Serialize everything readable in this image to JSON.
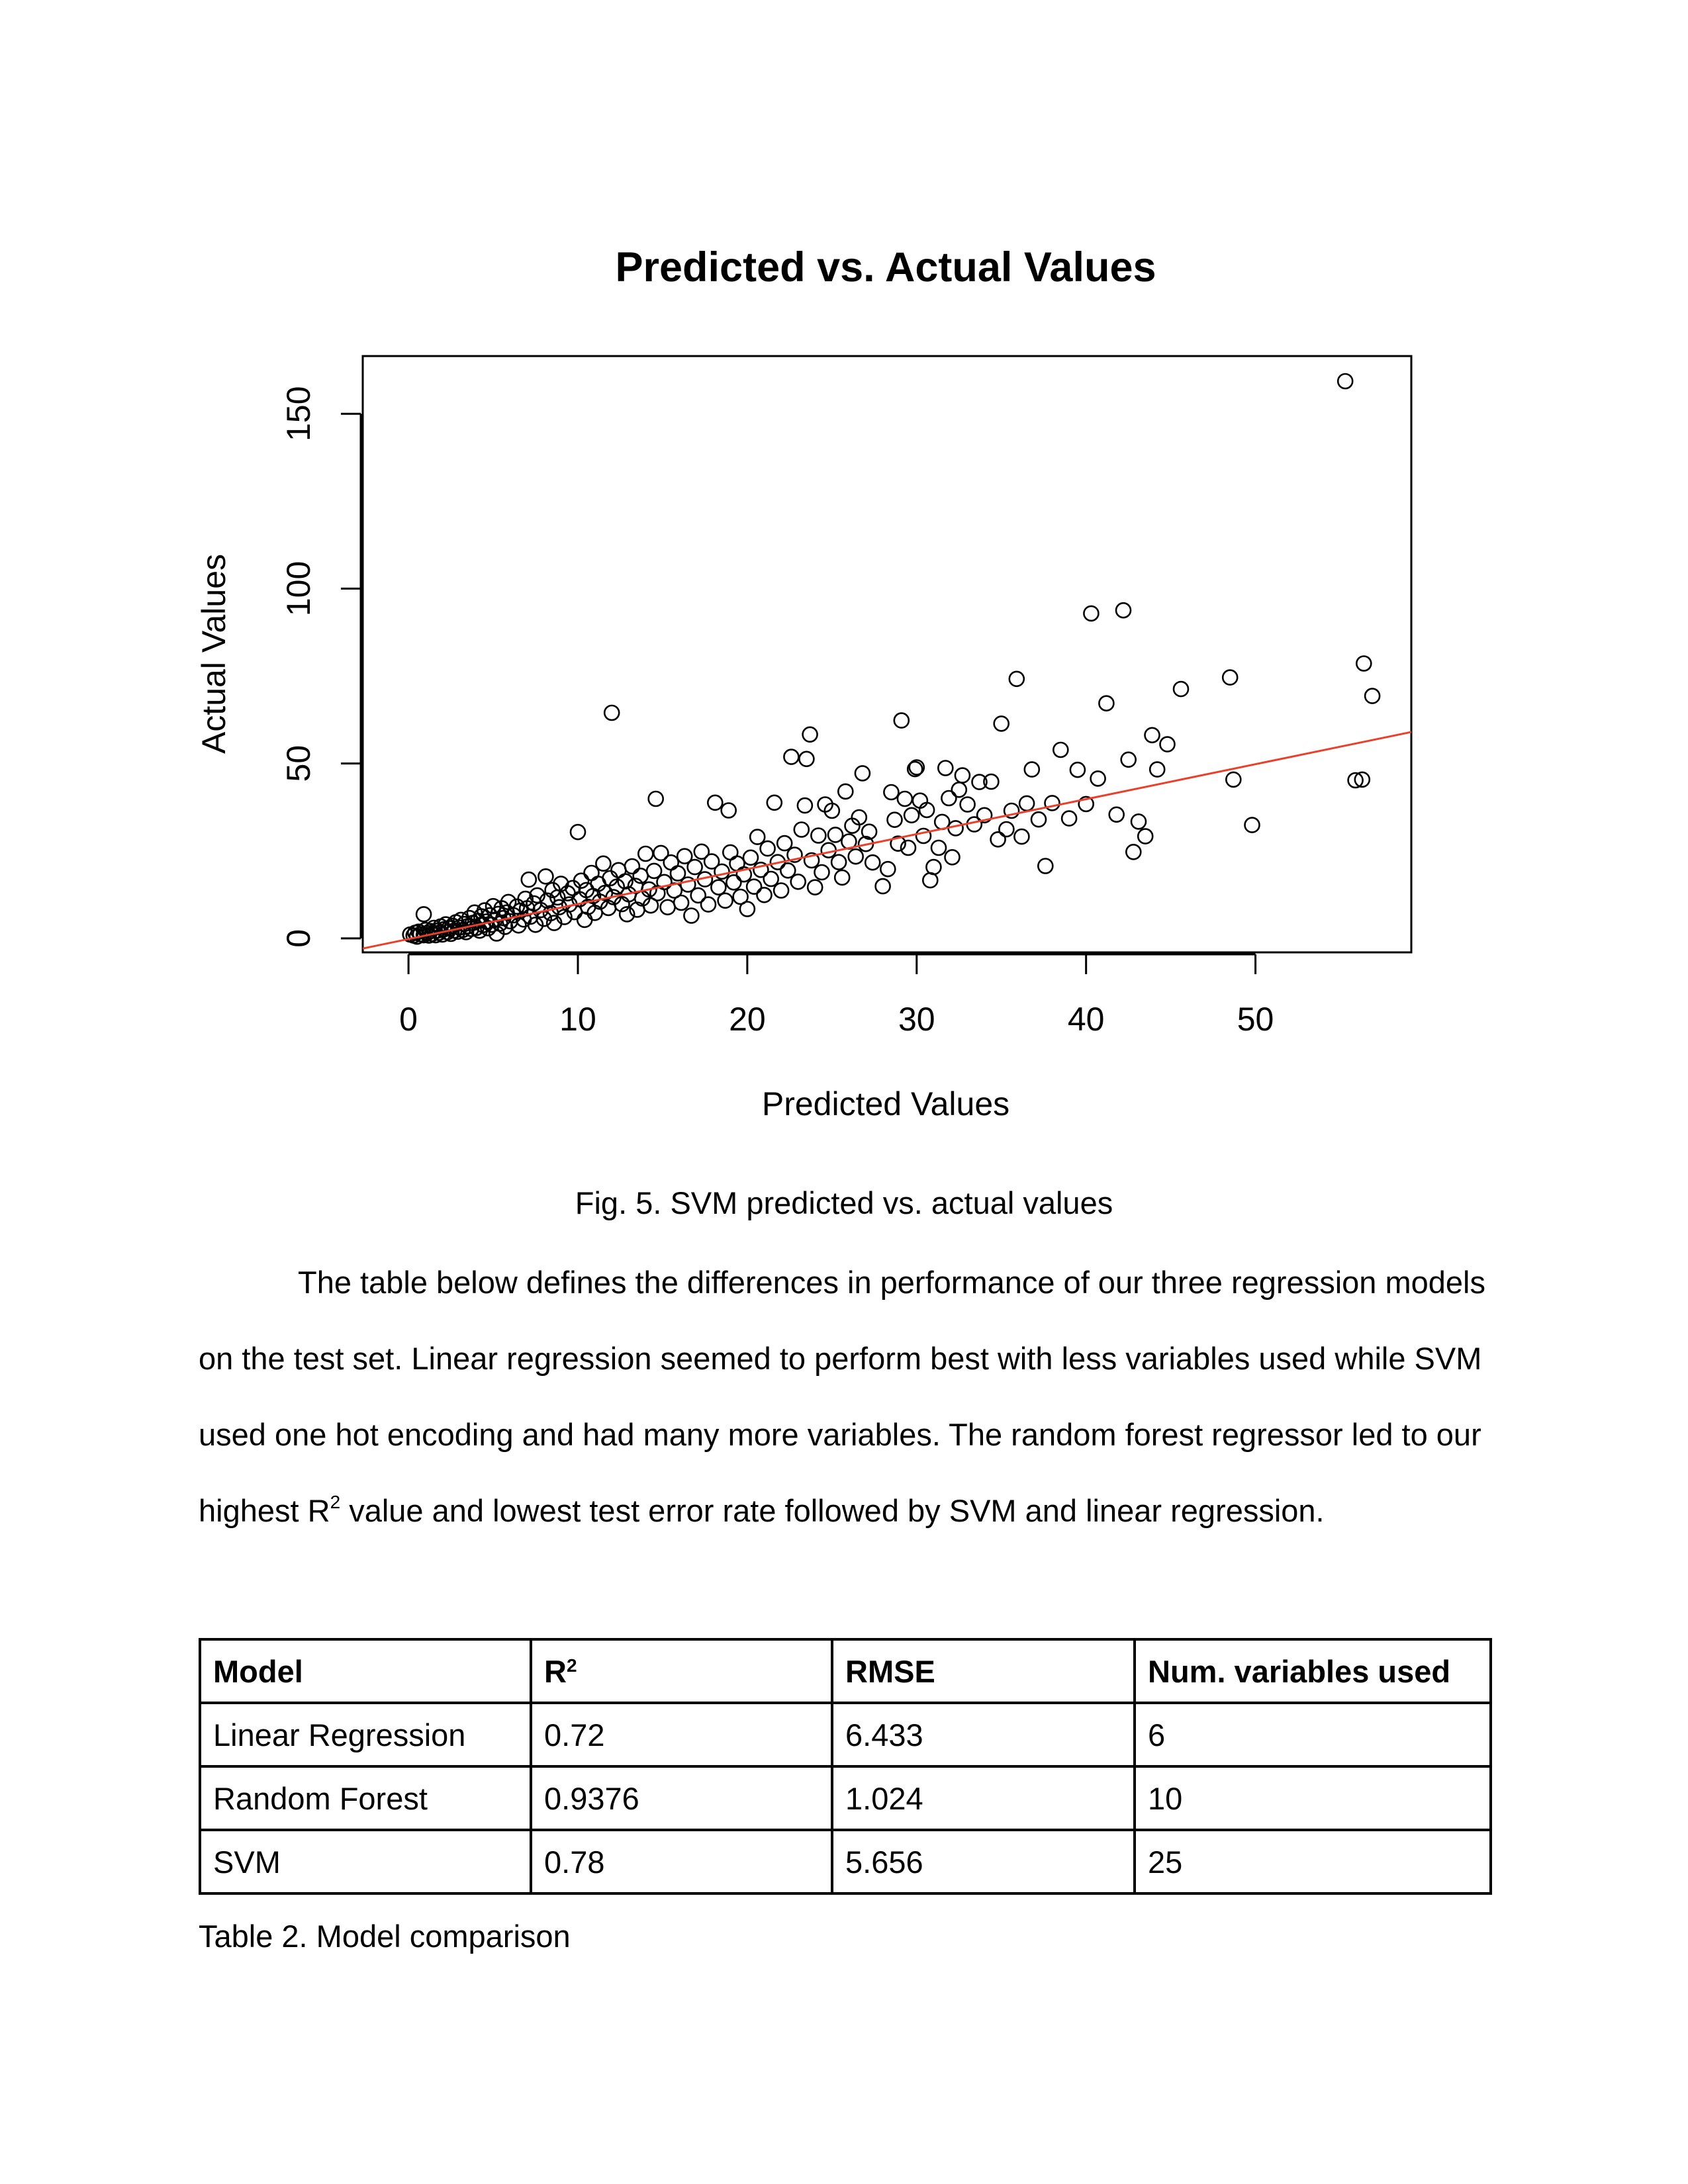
{
  "chart_data": {
    "type": "scatter",
    "title": "Predicted vs. Actual Values",
    "xlabel": "Predicted Values",
    "ylabel": "Actual Values",
    "xlim": [
      -2.7,
      59.2
    ],
    "ylim": [
      -4,
      166.5
    ],
    "xticks": [
      0,
      10,
      20,
      30,
      40,
      50
    ],
    "yticks": [
      0,
      50,
      100,
      150
    ],
    "grid": false,
    "legend": "none",
    "regression_line": {
      "intercept": -0.2,
      "slope": 1.0,
      "color": "#e8402a"
    },
    "points": [
      [
        0.1,
        1.1
      ],
      [
        0.3,
        0.8
      ],
      [
        0.4,
        1.6
      ],
      [
        0.5,
        0.5
      ],
      [
        0.6,
        1.9
      ],
      [
        0.7,
        1.2
      ],
      [
        0.9,
        6.9
      ],
      [
        0.9,
        0.9
      ],
      [
        1.0,
        2.4
      ],
      [
        1.1,
        1.5
      ],
      [
        1.2,
        0.8
      ],
      [
        1.3,
        2.1
      ],
      [
        1.4,
        1.3
      ],
      [
        1.5,
        3.0
      ],
      [
        1.6,
        0.9
      ],
      [
        1.7,
        2.2
      ],
      [
        1.8,
        1.6
      ],
      [
        1.9,
        3.4
      ],
      [
        2.0,
        1.1
      ],
      [
        2.1,
        2.6
      ],
      [
        2.2,
        4.0
      ],
      [
        2.3,
        1.8
      ],
      [
        2.4,
        2.9
      ],
      [
        2.5,
        1.3
      ],
      [
        2.6,
        3.6
      ],
      [
        2.7,
        2.2
      ],
      [
        2.8,
        4.6
      ],
      [
        2.9,
        1.9
      ],
      [
        3.0,
        3.1
      ],
      [
        3.1,
        5.3
      ],
      [
        3.2,
        2.4
      ],
      [
        3.3,
        4.1
      ],
      [
        3.4,
        1.8
      ],
      [
        3.5,
        3.5
      ],
      [
        3.6,
        5.8
      ],
      [
        3.7,
        2.7
      ],
      [
        3.8,
        4.4
      ],
      [
        3.9,
        7.4
      ],
      [
        4.0,
        3.0
      ],
      [
        4.1,
        5.0
      ],
      [
        4.2,
        2.2
      ],
      [
        4.3,
        6.3
      ],
      [
        4.4,
        3.8
      ],
      [
        4.5,
        8.0
      ],
      [
        4.6,
        4.8
      ],
      [
        4.7,
        2.9
      ],
      [
        4.8,
        6.6
      ],
      [
        4.9,
        3.9
      ],
      [
        5.0,
        9.2
      ],
      [
        5.1,
        5.3
      ],
      [
        5.2,
        1.4
      ],
      [
        5.3,
        7.0
      ],
      [
        5.4,
        4.2
      ],
      [
        5.5,
        8.6
      ],
      [
        5.6,
        5.8
      ],
      [
        5.7,
        3.3
      ],
      [
        5.8,
        7.4
      ],
      [
        5.9,
        10.4
      ],
      [
        6.0,
        4.9
      ],
      [
        6.2,
        6.6
      ],
      [
        6.4,
        9.1
      ],
      [
        6.5,
        3.7
      ],
      [
        6.6,
        7.9
      ],
      [
        6.8,
        5.4
      ],
      [
        6.9,
        11.3
      ],
      [
        7.0,
        8.6
      ],
      [
        7.1,
        16.8
      ],
      [
        7.2,
        6.2
      ],
      [
        7.4,
        10.0
      ],
      [
        7.5,
        3.9
      ],
      [
        7.6,
        12.3
      ],
      [
        7.8,
        8.1
      ],
      [
        8.0,
        5.6
      ],
      [
        8.1,
        17.7
      ],
      [
        8.2,
        10.8
      ],
      [
        8.4,
        7.2
      ],
      [
        8.5,
        13.8
      ],
      [
        8.6,
        4.4
      ],
      [
        8.8,
        11.7
      ],
      [
        8.9,
        8.9
      ],
      [
        9.0,
        15.6
      ],
      [
        9.2,
        6.1
      ],
      [
        9.4,
        12.9
      ],
      [
        9.5,
        9.7
      ],
      [
        9.7,
        14.4
      ],
      [
        9.8,
        7.5
      ],
      [
        10.0,
        30.4
      ],
      [
        10.1,
        11.2
      ],
      [
        10.2,
        16.5
      ],
      [
        10.4,
        5.3
      ],
      [
        10.5,
        13.8
      ],
      [
        10.6,
        9.0
      ],
      [
        10.8,
        18.7
      ],
      [
        10.9,
        12.1
      ],
      [
        11.0,
        7.3
      ],
      [
        11.2,
        15.6
      ],
      [
        11.3,
        10.5
      ],
      [
        11.5,
        21.4
      ],
      [
        11.6,
        13.0
      ],
      [
        11.8,
        8.7
      ],
      [
        11.9,
        17.2
      ],
      [
        12.0,
        64.5
      ],
      [
        12.1,
        11.8
      ],
      [
        12.3,
        14.8
      ],
      [
        12.4,
        19.5
      ],
      [
        12.6,
        9.8
      ],
      [
        12.8,
        16.3
      ],
      [
        12.9,
        6.9
      ],
      [
        13.0,
        12.6
      ],
      [
        13.2,
        20.6
      ],
      [
        13.4,
        15.0
      ],
      [
        13.5,
        8.2
      ],
      [
        13.7,
        17.9
      ],
      [
        13.8,
        11.4
      ],
      [
        14.0,
        24.2
      ],
      [
        14.2,
        14.0
      ],
      [
        14.3,
        9.4
      ],
      [
        14.5,
        19.3
      ],
      [
        14.6,
        39.9
      ],
      [
        14.7,
        12.9
      ],
      [
        14.9,
        24.4
      ],
      [
        15.1,
        16.1
      ],
      [
        15.3,
        8.9
      ],
      [
        15.5,
        21.7
      ],
      [
        15.7,
        13.7
      ],
      [
        15.9,
        18.6
      ],
      [
        16.1,
        10.2
      ],
      [
        16.3,
        23.5
      ],
      [
        16.5,
        15.4
      ],
      [
        16.7,
        6.5
      ],
      [
        16.9,
        20.4
      ],
      [
        17.1,
        12.3
      ],
      [
        17.3,
        24.8
      ],
      [
        17.5,
        16.9
      ],
      [
        17.7,
        9.7
      ],
      [
        17.9,
        22.0
      ],
      [
        18.1,
        38.8
      ],
      [
        18.3,
        14.6
      ],
      [
        18.5,
        19.1
      ],
      [
        18.7,
        10.8
      ],
      [
        18.9,
        36.6
      ],
      [
        19.0,
        24.6
      ],
      [
        19.2,
        16.0
      ],
      [
        19.4,
        21.4
      ],
      [
        19.6,
        11.9
      ],
      [
        19.8,
        18.3
      ],
      [
        20.0,
        8.4
      ],
      [
        20.2,
        23.1
      ],
      [
        20.4,
        14.8
      ],
      [
        20.6,
        29.0
      ],
      [
        20.8,
        19.6
      ],
      [
        21.0,
        12.4
      ],
      [
        21.2,
        25.7
      ],
      [
        21.4,
        17.0
      ],
      [
        21.6,
        38.8
      ],
      [
        21.8,
        21.8
      ],
      [
        22.0,
        13.7
      ],
      [
        22.2,
        27.2
      ],
      [
        22.4,
        19.4
      ],
      [
        22.6,
        51.9
      ],
      [
        22.8,
        23.9
      ],
      [
        23.0,
        16.2
      ],
      [
        23.2,
        31.1
      ],
      [
        23.4,
        38.0
      ],
      [
        23.5,
        51.3
      ],
      [
        23.7,
        58.3
      ],
      [
        23.8,
        22.3
      ],
      [
        24.0,
        14.6
      ],
      [
        24.2,
        29.4
      ],
      [
        24.4,
        18.9
      ],
      [
        24.6,
        38.3
      ],
      [
        24.8,
        25.2
      ],
      [
        25.0,
        36.5
      ],
      [
        25.2,
        29.6
      ],
      [
        25.4,
        21.8
      ],
      [
        25.6,
        17.4
      ],
      [
        25.8,
        42.0
      ],
      [
        26.0,
        27.7
      ],
      [
        26.2,
        32.2
      ],
      [
        26.4,
        23.4
      ],
      [
        26.6,
        34.6
      ],
      [
        26.8,
        47.2
      ],
      [
        27.0,
        27.0
      ],
      [
        27.2,
        30.5
      ],
      [
        27.4,
        21.7
      ],
      [
        28.0,
        14.9
      ],
      [
        28.3,
        19.8
      ],
      [
        28.5,
        41.8
      ],
      [
        28.7,
        33.9
      ],
      [
        28.9,
        27.1
      ],
      [
        29.1,
        62.3
      ],
      [
        29.3,
        39.9
      ],
      [
        29.5,
        25.9
      ],
      [
        29.7,
        35.2
      ],
      [
        29.9,
        48.4
      ],
      [
        30.0,
        48.9
      ],
      [
        30.2,
        39.4
      ],
      [
        30.4,
        29.3
      ],
      [
        30.6,
        36.7
      ],
      [
        30.8,
        16.6
      ],
      [
        31.0,
        20.4
      ],
      [
        31.3,
        25.9
      ],
      [
        31.5,
        33.3
      ],
      [
        31.7,
        48.7
      ],
      [
        31.9,
        40.1
      ],
      [
        32.1,
        23.2
      ],
      [
        32.3,
        31.5
      ],
      [
        32.5,
        42.5
      ],
      [
        32.7,
        46.6
      ],
      [
        33.0,
        38.3
      ],
      [
        33.4,
        32.6
      ],
      [
        33.7,
        44.7
      ],
      [
        34.0,
        35.2
      ],
      [
        34.4,
        44.8
      ],
      [
        34.8,
        28.3
      ],
      [
        35.0,
        61.4
      ],
      [
        35.3,
        31.2
      ],
      [
        35.6,
        36.5
      ],
      [
        35.9,
        74.2
      ],
      [
        36.2,
        29.1
      ],
      [
        36.5,
        38.6
      ],
      [
        36.8,
        48.3
      ],
      [
        37.2,
        34.0
      ],
      [
        37.6,
        20.7
      ],
      [
        38.0,
        38.7
      ],
      [
        38.5,
        53.9
      ],
      [
        39.0,
        34.3
      ],
      [
        39.5,
        48.2
      ],
      [
        40.0,
        38.4
      ],
      [
        40.3,
        92.9
      ],
      [
        40.7,
        45.7
      ],
      [
        41.2,
        67.2
      ],
      [
        41.8,
        35.4
      ],
      [
        42.2,
        93.8
      ],
      [
        42.5,
        51.1
      ],
      [
        42.8,
        24.7
      ],
      [
        43.1,
        33.4
      ],
      [
        43.5,
        29.2
      ],
      [
        43.9,
        58.1
      ],
      [
        44.2,
        48.3
      ],
      [
        44.8,
        55.5
      ],
      [
        45.6,
        71.3
      ],
      [
        48.5,
        74.6
      ],
      [
        48.7,
        45.4
      ],
      [
        49.8,
        32.4
      ],
      [
        55.3,
        159.3
      ],
      [
        55.9,
        45.2
      ],
      [
        56.3,
        45.4
      ],
      [
        56.4,
        78.6
      ],
      [
        56.9,
        69.3
      ]
    ]
  },
  "figure_caption": "Fig. 5. SVM predicted vs. actual values",
  "paragraph": {
    "part1": "The table below defines the differences in performance of our three regression models on the test set. Linear regression seemed to perform best with less variables used while SVM used one hot encoding and had many more variables. The random forest regressor led to our highest R",
    "sup": "2",
    "part2": " value and lowest test error rate followed by SVM and linear regression."
  },
  "table": {
    "headers": {
      "model": "Model",
      "r2_base": "R",
      "r2_sup": "2",
      "rmse": "RMSE",
      "vars": "Num. variables used"
    },
    "rows": [
      {
        "model": "Linear Regression",
        "r2": "0.72",
        "rmse": "6.433",
        "vars": "6"
      },
      {
        "model": "Random Forest",
        "r2": "0.9376",
        "rmse": "1.024",
        "vars": "10"
      },
      {
        "model": "SVM",
        "r2": "0.78",
        "rmse": "5.656",
        "vars": "25"
      }
    ],
    "caption": "Table 2. Model comparison"
  }
}
